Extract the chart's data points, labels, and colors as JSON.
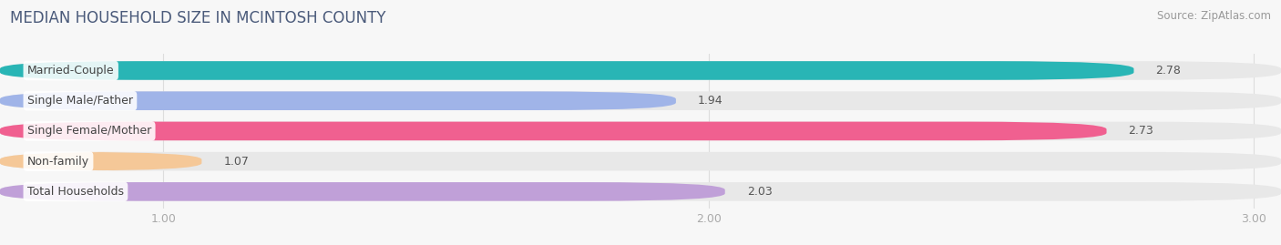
{
  "title": "MEDIAN HOUSEHOLD SIZE IN MCINTOSH COUNTY",
  "source": "Source: ZipAtlas.com",
  "categories": [
    "Married-Couple",
    "Single Male/Father",
    "Single Female/Mother",
    "Non-family",
    "Total Households"
  ],
  "values": [
    2.78,
    1.94,
    2.73,
    1.07,
    2.03
  ],
  "bar_colors": [
    "#29b5b5",
    "#a0b4e8",
    "#f06090",
    "#f5c898",
    "#c0a0d8"
  ],
  "bar_height": 0.62,
  "xlim_start": 0.7,
  "xlim_end": 3.05,
  "xaxis_min": 1.0,
  "xticks": [
    1.0,
    2.0,
    3.0
  ],
  "xlabel_fontsize": 9,
  "title_fontsize": 12,
  "label_fontsize": 9,
  "value_fontsize": 9,
  "background_color": "#f7f7f7",
  "bar_bg_color": "#e8e8e8",
  "source_fontsize": 8.5,
  "title_color": "#4a5a7a",
  "label_color": "#444444",
  "value_color": "#555555",
  "tick_color": "#aaaaaa",
  "grid_color": "#dddddd"
}
